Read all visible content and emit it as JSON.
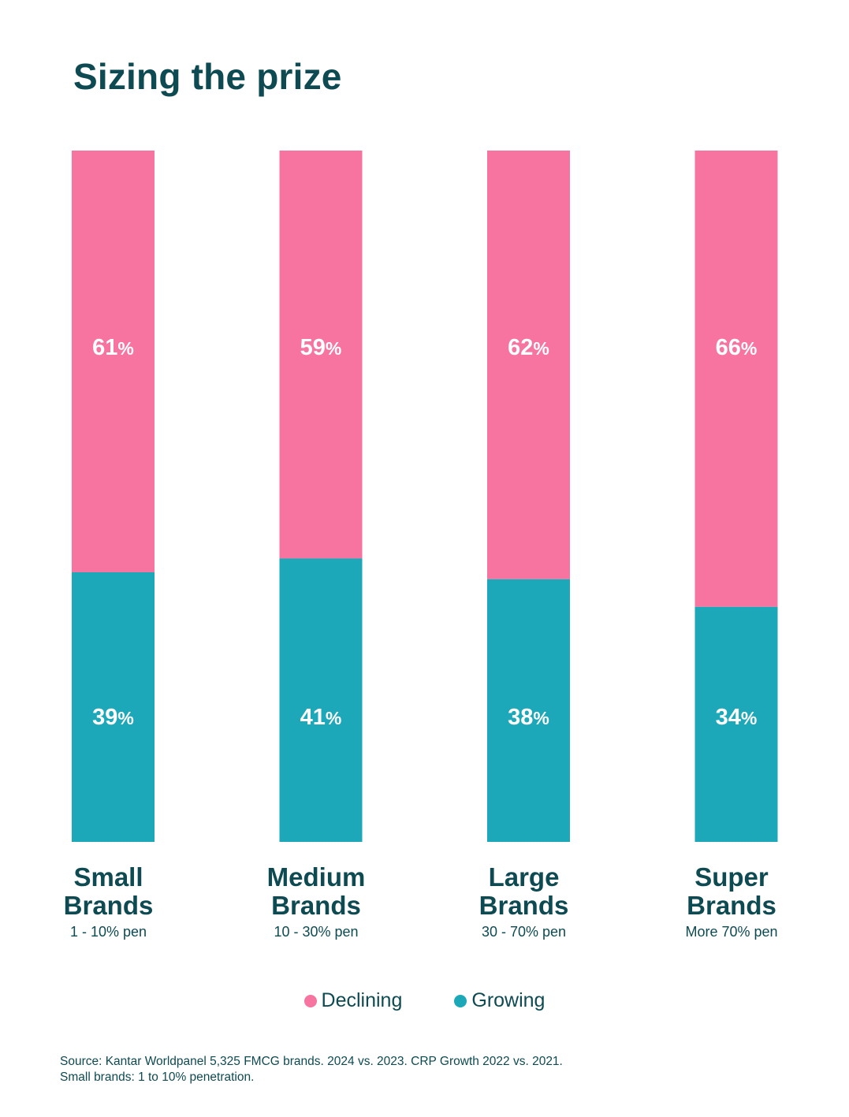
{
  "colors": {
    "declining": "#f774a0",
    "growing": "#1ca8b8",
    "text": "#0d4a52",
    "bar_label": "#ffffff"
  },
  "chart_data": {
    "type": "bar",
    "stacked": true,
    "normalized_percent": true,
    "title": "Sizing the prize",
    "categories": [
      "Small Brands",
      "Medium Brands",
      "Large Brands",
      "Super Brands"
    ],
    "category_labels": [
      {
        "line1": "Small",
        "line2": "Brands",
        "sub": "1 - 10% pen"
      },
      {
        "line1": "Medium",
        "line2": "Brands",
        "sub": "10 - 30% pen"
      },
      {
        "line1": "Large",
        "line2": "Brands",
        "sub": "30 - 70% pen"
      },
      {
        "line1": "Super",
        "line2": "Brands",
        "sub": "More 70% pen"
      }
    ],
    "series": [
      {
        "name": "Growing",
        "values": [
          39,
          41,
          38,
          34
        ],
        "labels": [
          "39%",
          "41%",
          "38%",
          "34%"
        ]
      },
      {
        "name": "Declining",
        "values": [
          61,
          59,
          62,
          66
        ],
        "labels": [
          "61%",
          "59%",
          "62%",
          "66%"
        ]
      }
    ],
    "ylim": [
      0,
      100
    ],
    "xlabel": "",
    "ylabel": "",
    "grid": false,
    "legend_position": "bottom-center"
  },
  "legend": {
    "declining_label": "Declining",
    "growing_label": "Growing"
  },
  "source": {
    "line1": "Source: Kantar Worldpanel 5,325 FMCG brands. 2024 vs. 2023. CRP Growth 2022 vs. 2021.",
    "line2": "Small brands: 1 to 10% penetration."
  }
}
